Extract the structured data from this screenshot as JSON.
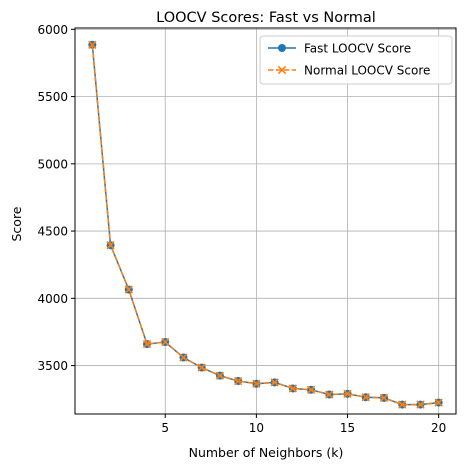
{
  "chart_data": {
    "type": "line",
    "title": "LOOCV Scores: Fast vs Normal",
    "xlabel": "Number of Neighbors (k)",
    "ylabel": "Score",
    "xlim": [
      0.05,
      20.95
    ],
    "ylim": [
      3140,
      6010
    ],
    "x_ticks": [
      5,
      10,
      15,
      20
    ],
    "y_ticks": [
      3500,
      4000,
      4500,
      5000,
      5500,
      6000
    ],
    "grid": true,
    "legend_position": "upper-right",
    "x": [
      1,
      2,
      3,
      4,
      5,
      6,
      7,
      8,
      9,
      10,
      11,
      12,
      13,
      14,
      15,
      16,
      17,
      18,
      19,
      20
    ],
    "series": [
      {
        "name": "Fast LOOCV Score",
        "color": "#1f77b4",
        "marker": "circle",
        "line_style": "solid",
        "values": [
          5885,
          4395,
          4065,
          3660,
          3675,
          3560,
          3485,
          3425,
          3385,
          3365,
          3375,
          3330,
          3320,
          3285,
          3290,
          3265,
          3260,
          3210,
          3210,
          3225
        ]
      },
      {
        "name": "Normal LOOCV Score",
        "color": "#ff7f0e",
        "marker": "x",
        "line_style": "dashed",
        "values": [
          5885,
          4395,
          4065,
          3660,
          3675,
          3560,
          3485,
          3425,
          3385,
          3365,
          3375,
          3330,
          3320,
          3285,
          3290,
          3265,
          3260,
          3210,
          3210,
          3225
        ]
      }
    ]
  }
}
